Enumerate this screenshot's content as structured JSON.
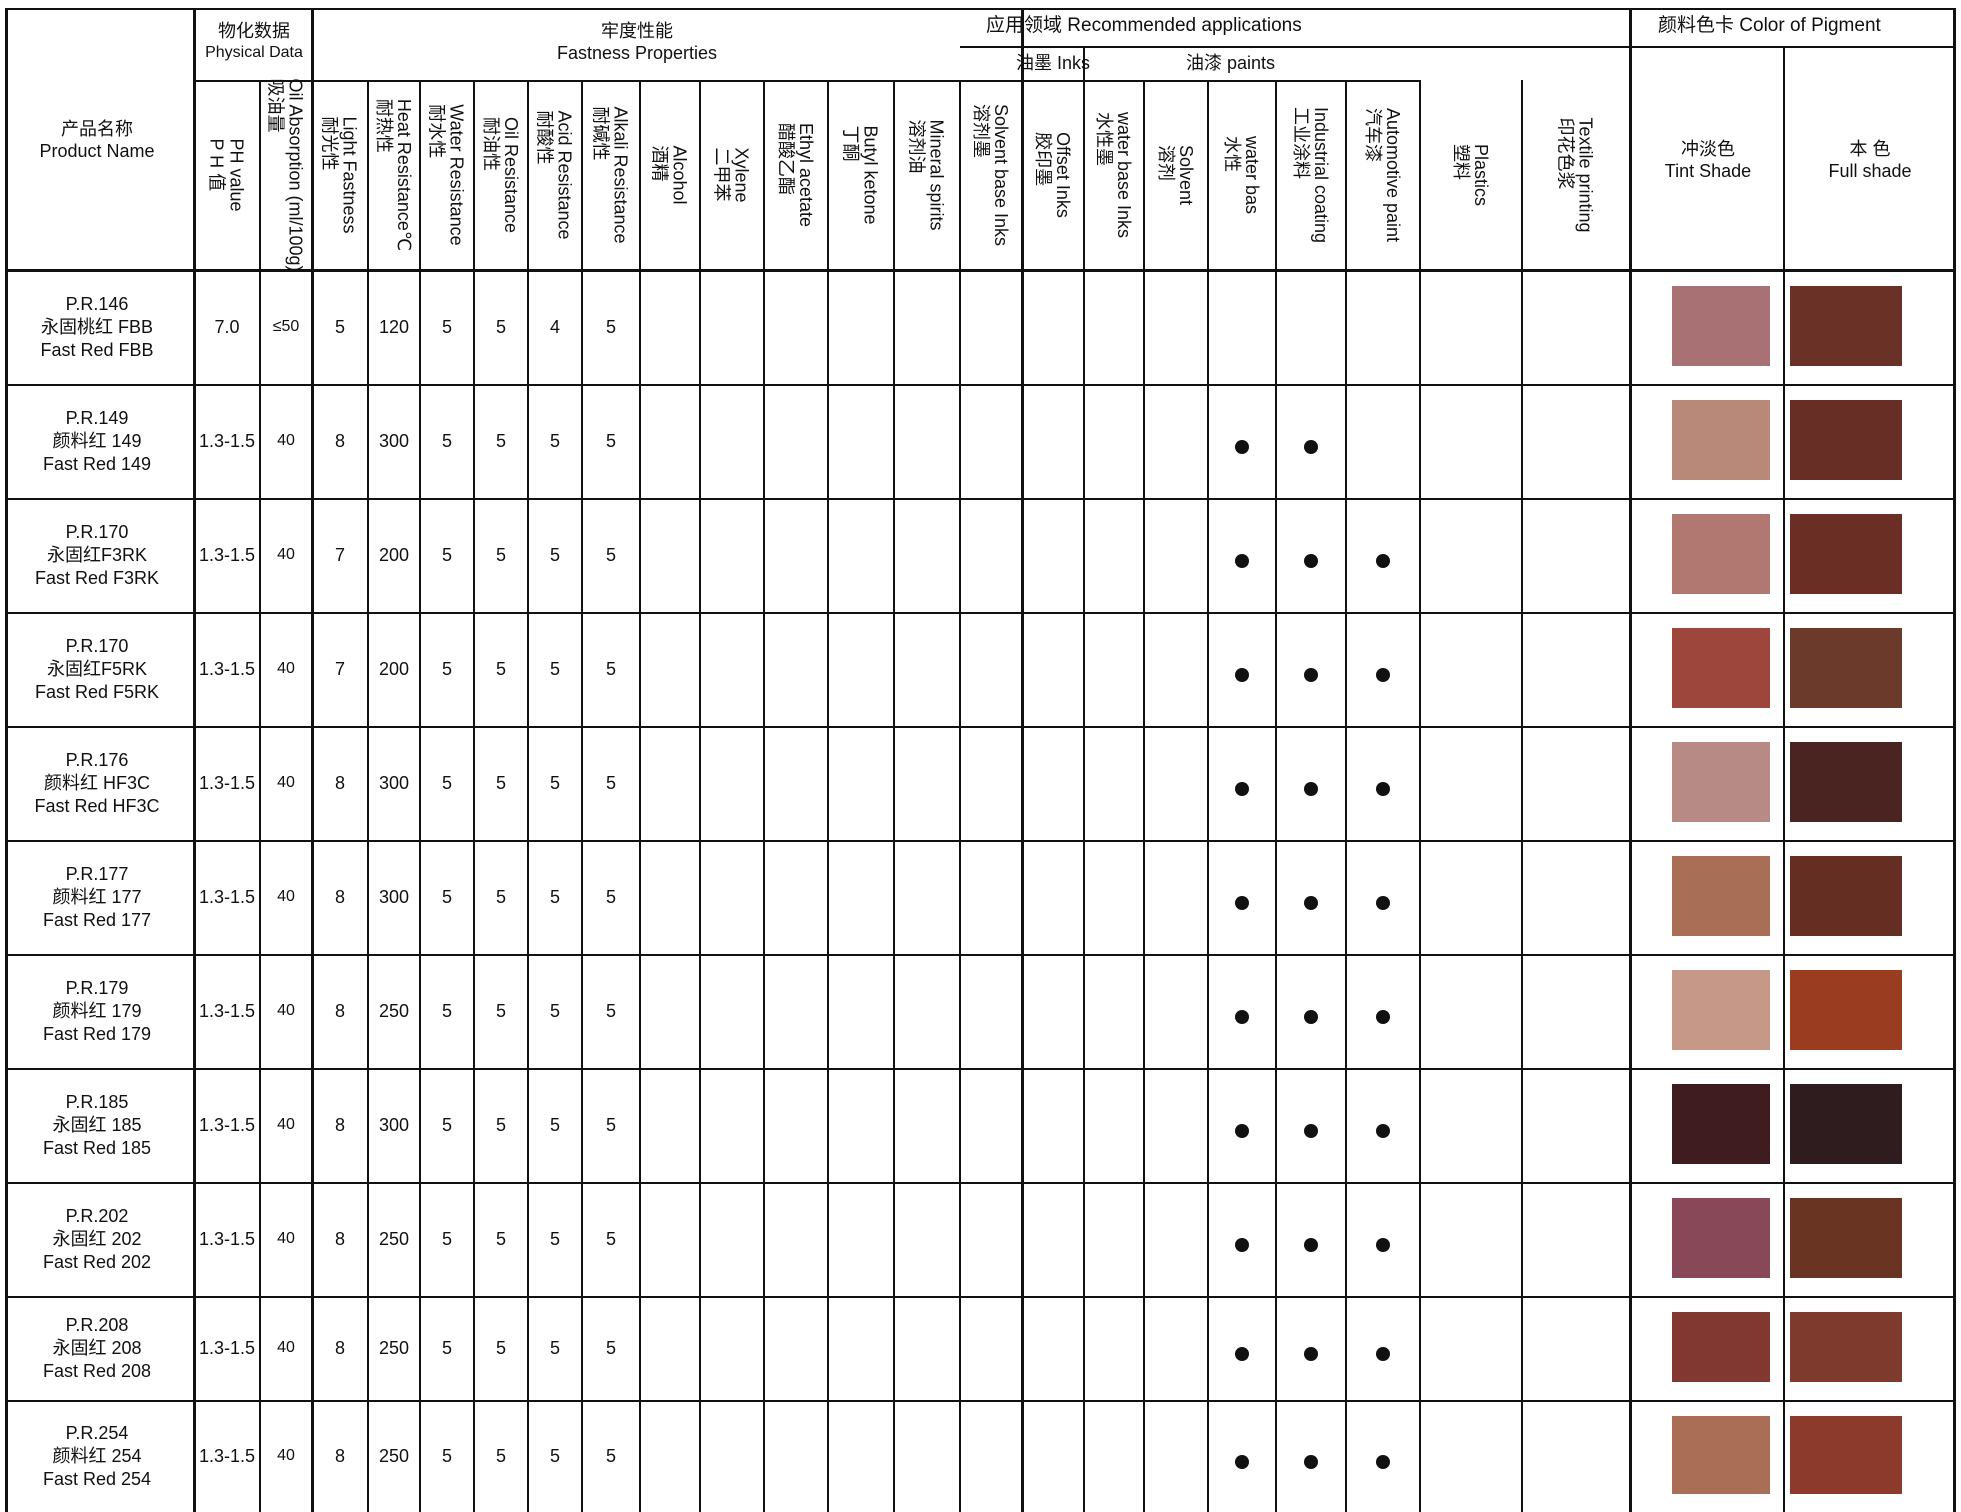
{
  "headers": {
    "product": [
      "产品名称",
      "Product Name"
    ],
    "physical": [
      "物化数据",
      "Physical Data"
    ],
    "fastness": [
      "牢度性能",
      "Fastness Properties"
    ],
    "applications": "应用领域 Recommended applications",
    "inks_group": "油墨 Inks",
    "paints_group": "油漆 paints",
    "color_card": "颜料色卡 Color of Pigment",
    "tint": [
      "冲淡色",
      "Tint Shade"
    ],
    "full": [
      "本 色",
      "Full shade"
    ],
    "columns": [
      [
        "P H 值",
        "PH value"
      ],
      [
        "吸油量",
        "Oil Absorption (ml/100g)"
      ],
      [
        "耐光性",
        "Light Fastness"
      ],
      [
        "耐热性",
        "Heat Resistance℃"
      ],
      [
        "耐水性",
        "Water Resistance"
      ],
      [
        "耐油性",
        "Oil Resistance"
      ],
      [
        "耐酸性",
        "Acid Resistance"
      ],
      [
        "耐碱性",
        "Alkali Resistance"
      ],
      [
        "酒精",
        "Alcohol"
      ],
      [
        "二甲苯",
        "Xylene"
      ],
      [
        "醋酸乙酯",
        "Ethyl acetate"
      ],
      [
        "丁酮",
        "Butyl ketone"
      ],
      [
        "溶剂油",
        "Mineral spirits"
      ],
      [
        "溶剂墨",
        "Solvent base Inks"
      ],
      [
        "胶印墨",
        "Offset Inks"
      ],
      [
        "水性墨",
        "water base Inks"
      ],
      [
        "溶剂",
        "Solvent"
      ],
      [
        "水性",
        "water bas"
      ],
      [
        "工业涂料",
        "Industrial coating"
      ],
      [
        "汽车漆",
        "Automotive paint"
      ],
      [
        "塑料",
        "Plastics"
      ],
      [
        "印花色浆",
        "Textile printing"
      ]
    ]
  },
  "rows": [
    {
      "code": "P.R.146",
      "cn": "永固桃红 FBB",
      "en": "Fast Red  FBB",
      "ph": "7.0",
      "oil": "≤50",
      "light": "5",
      "heat": "120",
      "water": "5",
      "oilres": "5",
      "acid": "4",
      "alkali": "5",
      "water_bas": false,
      "industrial": false,
      "automotive": false,
      "tint_color": "#a87274",
      "full_color": "#6a3126"
    },
    {
      "code": "P.R.149",
      "cn": "颜料红 149",
      "en": "Fast Red 149",
      "ph": "1.3-1.5",
      "oil": "40",
      "light": "8",
      "heat": "300",
      "water": "5",
      "oilres": "5",
      "acid": "5",
      "alkali": "5",
      "water_bas": true,
      "industrial": true,
      "automotive": false,
      "tint_color": "#b88878",
      "full_color": "#662e24"
    },
    {
      "code": "P.R.170",
      "cn": "永固红F3RK",
      "en": "Fast Red F3RK",
      "ph": "1.3-1.5",
      "oil": "40",
      "light": "7",
      "heat": "200",
      "water": "5",
      "oilres": "5",
      "acid": "5",
      "alkali": "5",
      "water_bas": true,
      "industrial": true,
      "automotive": true,
      "tint_color": "#b07870",
      "full_color": "#6a2e24"
    },
    {
      "code": "P.R.170",
      "cn": "永固红F5RK",
      "en": "Fast Red F5RK",
      "ph": "1.3-1.5",
      "oil": "40",
      "light": "7",
      "heat": "200",
      "water": "5",
      "oilres": "5",
      "acid": "5",
      "alkali": "5",
      "water_bas": true,
      "industrial": true,
      "automotive": true,
      "tint_color": "#9c463c",
      "full_color": "#6c3a2a"
    },
    {
      "code": "P.R.176",
      "cn": "颜料红 HF3C",
      "en": "Fast Red HF3C",
      "ph": "1.3-1.5",
      "oil": "40",
      "light": "8",
      "heat": "300",
      "water": "5",
      "oilres": "5",
      "acid": "5",
      "alkali": "5",
      "water_bas": true,
      "industrial": true,
      "automotive": true,
      "tint_color": "#b88a86",
      "full_color": "#4a2420"
    },
    {
      "code": "P.R.177",
      "cn": "颜料红 177",
      "en": "Fast Red 177",
      "ph": "1.3-1.5",
      "oil": "40",
      "light": "8",
      "heat": "300",
      "water": "5",
      "oilres": "5",
      "acid": "5",
      "alkali": "5",
      "water_bas": true,
      "industrial": true,
      "automotive": true,
      "tint_color": "#a86e56",
      "full_color": "#642e22"
    },
    {
      "code": "P.R.179",
      "cn": "颜料红 179",
      "en": "Fast Red 179",
      "ph": "1.3-1.5",
      "oil": "40",
      "light": "8",
      "heat": "250",
      "water": "5",
      "oilres": "5",
      "acid": "5",
      "alkali": "5",
      "water_bas": true,
      "industrial": true,
      "automotive": true,
      "tint_color": "#c69888",
      "full_color": "#9a3c20"
    },
    {
      "code": "P.R.185",
      "cn": "永固红 185",
      "en": "Fast Red 185",
      "ph": "1.3-1.5",
      "oil": "40",
      "light": "8",
      "heat": "300",
      "water": "5",
      "oilres": "5",
      "acid": "5",
      "alkali": "5",
      "water_bas": true,
      "industrial": true,
      "automotive": true,
      "tint_color": "#3e1c20",
      "full_color": "#2e1c1e"
    },
    {
      "code": "P.R.202",
      "cn": "永固红 202",
      "en": "Fast Red 202",
      "ph": "1.3-1.5",
      "oil": "40",
      "light": "8",
      "heat": "250",
      "water": "5",
      "oilres": "5",
      "acid": "5",
      "alkali": "5",
      "water_bas": true,
      "industrial": true,
      "automotive": true,
      "tint_color": "#884858",
      "full_color": "#6a3422"
    },
    {
      "code": "P.R.208",
      "cn": "永固红 208",
      "en": "Fast Red 208",
      "ph": "1.3-1.5",
      "oil": "40",
      "light": "8",
      "heat": "250",
      "water": "5",
      "oilres": "5",
      "acid": "5",
      "alkali": "5",
      "water_bas": true,
      "industrial": true,
      "automotive": true,
      "tint_color": "#803830",
      "full_color": "#7e3a2c"
    },
    {
      "code": "P.R.254",
      "cn": "颜料红 254",
      "en": "Fast Red 254",
      "ph": "1.3-1.5",
      "oil": "40",
      "light": "8",
      "heat": "250",
      "water": "5",
      "oilres": "5",
      "acid": "5",
      "alkali": "5",
      "water_bas": true,
      "industrial": true,
      "automotive": true,
      "tint_color": "#aa6e56",
      "full_color": "#8c3a2c"
    }
  ]
}
